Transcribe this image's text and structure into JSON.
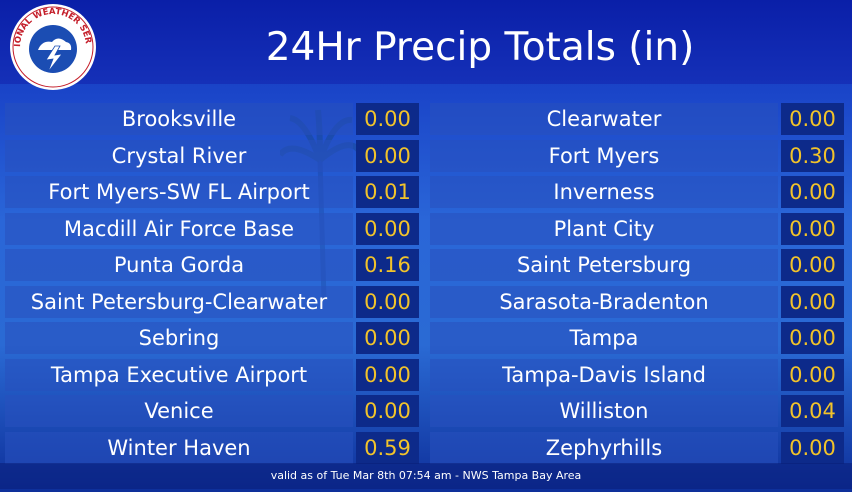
{
  "header": {
    "title": "24Hr Precip Totals (in)"
  },
  "logo": {
    "text": "NATIONAL WEATHER SERVICE"
  },
  "stations_left": [
    {
      "name": "Brooksville",
      "value": "0.00"
    },
    {
      "name": "Crystal River",
      "value": "0.00"
    },
    {
      "name": "Fort Myers-SW FL Airport",
      "value": "0.01"
    },
    {
      "name": "Macdill Air Force Base",
      "value": "0.00"
    },
    {
      "name": "Punta Gorda",
      "value": "0.16"
    },
    {
      "name": "Saint Petersburg-Clearwater",
      "value": "0.00"
    },
    {
      "name": "Sebring",
      "value": "0.00"
    },
    {
      "name": "Tampa Executive Airport",
      "value": "0.00"
    },
    {
      "name": "Venice",
      "value": "0.00"
    },
    {
      "name": "Winter Haven",
      "value": "0.59"
    }
  ],
  "stations_right": [
    {
      "name": "Clearwater",
      "value": "0.00"
    },
    {
      "name": "Fort Myers",
      "value": "0.30"
    },
    {
      "name": "Inverness",
      "value": "0.00"
    },
    {
      "name": "Plant City",
      "value": "0.00"
    },
    {
      "name": "Saint Petersburg",
      "value": "0.00"
    },
    {
      "name": "Sarasota-Bradenton",
      "value": "0.00"
    },
    {
      "name": "Tampa",
      "value": "0.00"
    },
    {
      "name": "Tampa-Davis Island",
      "value": "0.00"
    },
    {
      "name": "Williston",
      "value": "0.04"
    },
    {
      "name": "Zephyrhills",
      "value": "0.00"
    }
  ],
  "footer": {
    "text": "valid as of Tue Mar 8th 07:54 am - NWS Tampa Bay Area"
  },
  "colors": {
    "value_text": "#f2c32a",
    "banner": "#0a1fa8"
  }
}
